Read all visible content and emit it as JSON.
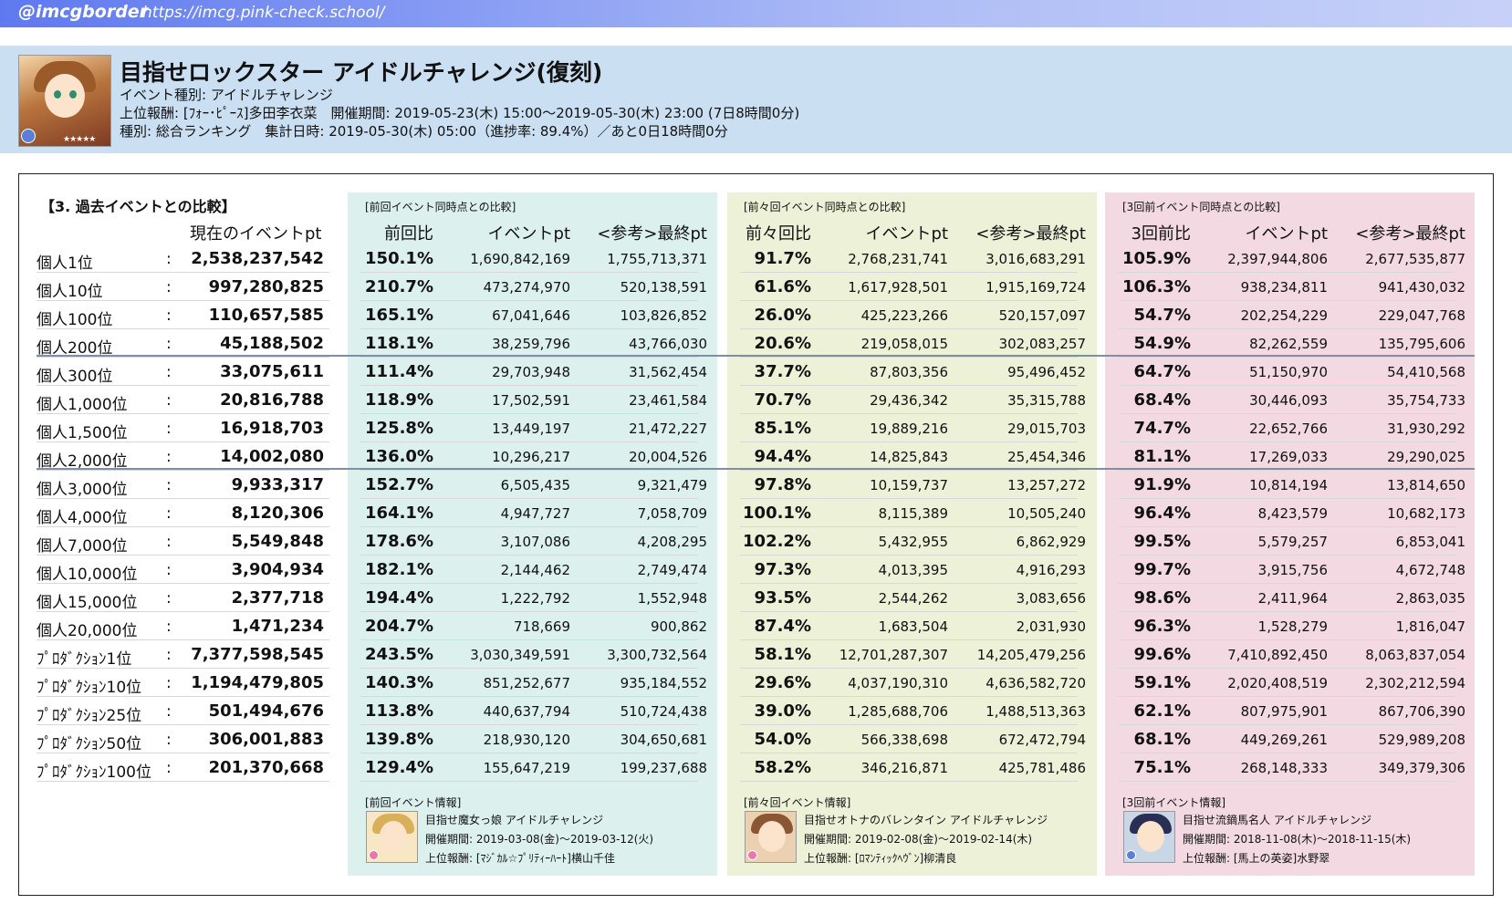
{
  "topbar": {
    "handle": "@imcgborder",
    "url": "https://imcg.pink-check.school/"
  },
  "event": {
    "title": "目指せロックスター アイドルチャレンジ(復刻)",
    "type_line": "イベント種別: アイドルチャレンジ",
    "reward_line": "上位報酬: [ﾌｫｰ･ﾋﾟｰｽ]多田李衣菜　開催期間: 2019-05-23(木) 15:00～2019-05-30(木) 23:00 (7日8時間0分)",
    "ranking_line": "種別: 総合ランキング　集計日時: 2019-05-30(木) 05:00（進捗率: 89.4%）／あと0日18時間0分"
  },
  "comparison": {
    "section_title": "【3. 過去イベントとの比較】",
    "current_header": "現在のイベントpt",
    "groups": [
      {
        "label": "[前回イベント同時点との比較]",
        "ratio_header": "前回比",
        "pt_header": "イベントpt",
        "final_header": "<参考>最終pt"
      },
      {
        "label": "[前々回イベント同時点との比較]",
        "ratio_header": "前々回比",
        "pt_header": "イベントpt",
        "final_header": "<参考>最終pt"
      },
      {
        "label": "[3回前イベント同時点との比較]",
        "ratio_header": "3回前比",
        "pt_header": "イベントpt",
        "final_header": "<参考>最終pt"
      }
    ],
    "colon": ":",
    "rows": [
      {
        "rank": "個人1位",
        "current": "2,538,237,542",
        "g": [
          [
            "150.1%",
            "1,690,842,169",
            "1,755,713,371"
          ],
          [
            "91.7%",
            "2,768,231,741",
            "3,016,683,291"
          ],
          [
            "105.9%",
            "2,397,944,806",
            "2,677,535,877"
          ]
        ]
      },
      {
        "rank": "個人10位",
        "current": "997,280,825",
        "g": [
          [
            "210.7%",
            "473,274,970",
            "520,138,591"
          ],
          [
            "61.6%",
            "1,617,928,501",
            "1,915,169,724"
          ],
          [
            "106.3%",
            "938,234,811",
            "941,430,032"
          ]
        ]
      },
      {
        "rank": "個人100位",
        "current": "110,657,585",
        "g": [
          [
            "165.1%",
            "67,041,646",
            "103,826,852"
          ],
          [
            "26.0%",
            "425,223,266",
            "520,157,097"
          ],
          [
            "54.7%",
            "202,254,229",
            "229,047,768"
          ]
        ]
      },
      {
        "rank": "個人200位",
        "current": "45,188,502",
        "g": [
          [
            "118.1%",
            "38,259,796",
            "43,766,030"
          ],
          [
            "20.6%",
            "219,058,015",
            "302,083,257"
          ],
          [
            "54.9%",
            "82,262,559",
            "135,795,606"
          ]
        ]
      },
      {
        "rank": "個人300位",
        "current": "33,075,611",
        "g": [
          [
            "111.4%",
            "29,703,948",
            "31,562,454"
          ],
          [
            "37.7%",
            "87,803,356",
            "95,496,452"
          ],
          [
            "64.7%",
            "51,150,970",
            "54,410,568"
          ]
        ]
      },
      {
        "rank": "個人1,000位",
        "current": "20,816,788",
        "g": [
          [
            "118.9%",
            "17,502,591",
            "23,461,584"
          ],
          [
            "70.7%",
            "29,436,342",
            "35,315,788"
          ],
          [
            "68.4%",
            "30,446,093",
            "35,754,733"
          ]
        ]
      },
      {
        "rank": "個人1,500位",
        "current": "16,918,703",
        "g": [
          [
            "125.8%",
            "13,449,197",
            "21,472,227"
          ],
          [
            "85.1%",
            "19,889,216",
            "29,015,703"
          ],
          [
            "74.7%",
            "22,652,766",
            "31,930,292"
          ]
        ]
      },
      {
        "rank": "個人2,000位",
        "current": "14,002,080",
        "g": [
          [
            "136.0%",
            "10,296,217",
            "20,004,526"
          ],
          [
            "94.4%",
            "14,825,843",
            "25,454,346"
          ],
          [
            "81.1%",
            "17,269,033",
            "29,290,025"
          ]
        ]
      },
      {
        "rank": "個人3,000位",
        "current": "9,933,317",
        "g": [
          [
            "152.7%",
            "6,505,435",
            "9,321,479"
          ],
          [
            "97.8%",
            "10,159,737",
            "13,257,272"
          ],
          [
            "91.9%",
            "10,814,194",
            "13,814,650"
          ]
        ]
      },
      {
        "rank": "個人4,000位",
        "current": "8,120,306",
        "g": [
          [
            "164.1%",
            "4,947,727",
            "7,058,709"
          ],
          [
            "100.1%",
            "8,115,389",
            "10,505,240"
          ],
          [
            "96.4%",
            "8,423,579",
            "10,682,173"
          ]
        ]
      },
      {
        "rank": "個人7,000位",
        "current": "5,549,848",
        "g": [
          [
            "178.6%",
            "3,107,086",
            "4,208,295"
          ],
          [
            "102.2%",
            "5,432,955",
            "6,862,929"
          ],
          [
            "99.5%",
            "5,579,257",
            "6,853,041"
          ]
        ]
      },
      {
        "rank": "個人10,000位",
        "current": "3,904,934",
        "g": [
          [
            "182.1%",
            "2,144,462",
            "2,749,474"
          ],
          [
            "97.3%",
            "4,013,395",
            "4,916,293"
          ],
          [
            "99.7%",
            "3,915,756",
            "4,672,748"
          ]
        ]
      },
      {
        "rank": "個人15,000位",
        "current": "2,377,718",
        "g": [
          [
            "194.4%",
            "1,222,792",
            "1,552,948"
          ],
          [
            "93.5%",
            "2,544,262",
            "3,083,656"
          ],
          [
            "98.6%",
            "2,411,964",
            "2,863,035"
          ]
        ]
      },
      {
        "rank": "個人20,000位",
        "current": "1,471,234",
        "g": [
          [
            "204.7%",
            "718,669",
            "900,862"
          ],
          [
            "87.4%",
            "1,683,504",
            "2,031,930"
          ],
          [
            "96.3%",
            "1,528,279",
            "1,816,047"
          ]
        ]
      },
      {
        "rank": "ﾌﾟﾛﾀﾞｸｼｮﾝ1位",
        "current": "7,377,598,545",
        "g": [
          [
            "243.5%",
            "3,030,349,591",
            "3,300,732,564"
          ],
          [
            "58.1%",
            "12,701,287,307",
            "14,205,479,256"
          ],
          [
            "99.6%",
            "7,410,892,450",
            "8,063,837,054"
          ]
        ]
      },
      {
        "rank": "ﾌﾟﾛﾀﾞｸｼｮﾝ10位",
        "current": "1,194,479,805",
        "g": [
          [
            "140.3%",
            "851,252,677",
            "935,184,552"
          ],
          [
            "29.6%",
            "4,037,190,310",
            "4,636,582,720"
          ],
          [
            "59.1%",
            "2,020,408,519",
            "2,302,212,594"
          ]
        ]
      },
      {
        "rank": "ﾌﾟﾛﾀﾞｸｼｮﾝ25位",
        "current": "501,494,676",
        "g": [
          [
            "113.8%",
            "440,637,794",
            "510,724,438"
          ],
          [
            "39.0%",
            "1,285,688,706",
            "1,488,513,363"
          ],
          [
            "62.1%",
            "807,975,901",
            "867,706,390"
          ]
        ]
      },
      {
        "rank": "ﾌﾟﾛﾀﾞｸｼｮﾝ50位",
        "current": "306,001,883",
        "g": [
          [
            "139.8%",
            "218,930,120",
            "304,650,681"
          ],
          [
            "54.0%",
            "566,338,698",
            "672,472,794"
          ],
          [
            "68.1%",
            "449,269,261",
            "529,989,208"
          ]
        ]
      },
      {
        "rank": "ﾌﾟﾛﾀﾞｸｼｮﾝ100位",
        "current": "201,370,668",
        "g": [
          [
            "129.4%",
            "155,647,219",
            "199,237,688"
          ],
          [
            "58.2%",
            "346,216,871",
            "425,781,486"
          ],
          [
            "75.1%",
            "268,148,333",
            "349,379,306"
          ]
        ]
      }
    ],
    "past_events": [
      {
        "label": "[前回イベント情報]",
        "name": "目指せ魔女っ娘 アイドルチャレンジ",
        "period": "開催期間: 2019-03-08(金)～2019-03-12(火)",
        "reward": "上位報酬: [ﾏｼﾞｶﾙ☆ﾌﾟﾘﾃｨｰﾊｰﾄ]横山千佳"
      },
      {
        "label": "[前々回イベント情報]",
        "name": "目指せオトナのバレンタイン アイドルチャレンジ",
        "period": "開催期間: 2019-02-08(金)～2019-02-14(木)",
        "reward": "上位報酬: [ﾛﾏﾝﾃｨｯｸﾍｳﾞﾝ]柳清良"
      },
      {
        "label": "[3回前イベント情報]",
        "name": "目指せ流鏑馬名人 アイドルチャレンジ",
        "period": "開催期間: 2018-11-08(木)～2018-11-15(木)",
        "reward": "上位報酬: [馬上の英姿]水野翠"
      }
    ]
  },
  "colors": {
    "topbar": "#5f79f0",
    "header_bg": "#cbdff3",
    "group1_bg": "#dcf0ee",
    "group2_bg": "#ecf1d8",
    "group3_bg": "#f2d9e2"
  }
}
